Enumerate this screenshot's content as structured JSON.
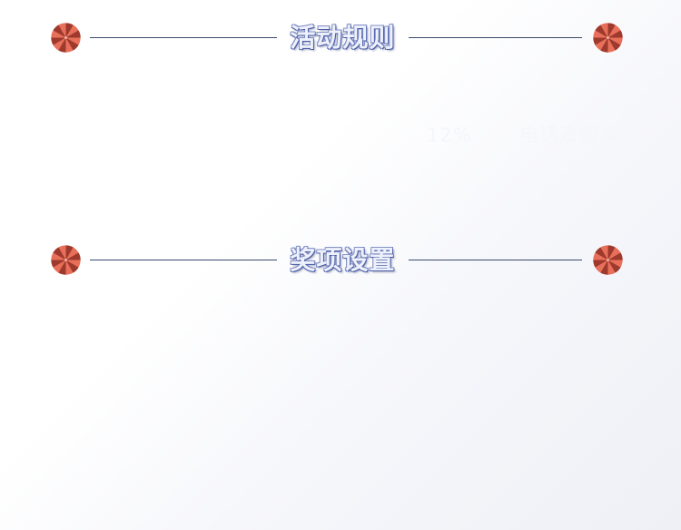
{
  "sections": {
    "rules": {
      "title": "活动规则"
    },
    "prizes": {
      "title": "奖项设置"
    }
  },
  "faint_text": {
    "left": "12%",
    "right": "电话及服务"
  },
  "icons": {
    "decoration": "candy-icon"
  },
  "colors": {
    "candy_light": "#e8705a",
    "candy_dark": "#9e3a2d",
    "divider": "#3b4a6b",
    "title_fill": "#eef1fb",
    "title_outline": "#4a5ea6"
  }
}
